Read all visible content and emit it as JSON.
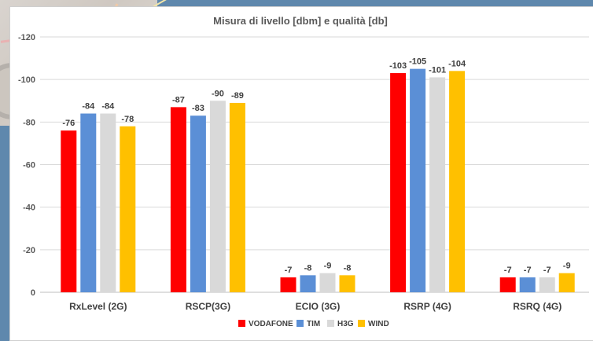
{
  "chart_data": {
    "type": "bar",
    "title": "Misura di livello [dbm] e qualità [db]",
    "categories": [
      "RxLevel (2G)",
      "RSCP(3G)",
      "ECIO (3G)",
      "RSRP (4G)",
      "RSRQ (4G)"
    ],
    "series": [
      {
        "name": "VODAFONE",
        "color": "#ff0000",
        "values": [
          -76,
          -87,
          -7,
          -103,
          -7
        ]
      },
      {
        "name": "TIM",
        "color": "#5b8fd6",
        "values": [
          -84,
          -83,
          -8,
          -105,
          -7
        ]
      },
      {
        "name": "H3G",
        "color": "#d9d9d9",
        "values": [
          -84,
          -90,
          -9,
          -101,
          -7
        ]
      },
      {
        "name": "WIND",
        "color": "#ffc000",
        "values": [
          -78,
          -89,
          -8,
          -104,
          -9
        ]
      }
    ],
    "yticks": [
      0,
      -20,
      -40,
      -60,
      -80,
      -100,
      -120
    ],
    "ylim": [
      0,
      -120
    ],
    "xlabel": "",
    "ylabel": "",
    "grid": true,
    "legend": "bottom"
  }
}
